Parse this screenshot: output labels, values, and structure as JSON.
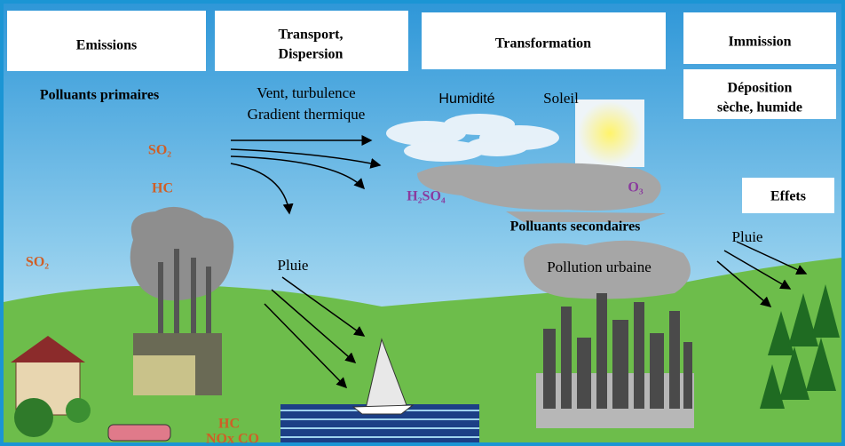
{
  "headers": {
    "emissions": "Emissions",
    "transport": [
      "Transport,",
      "Dispersion"
    ],
    "transformation": "Transformation",
    "immission": "Immission"
  },
  "deposition": [
    "Déposition",
    "sèche, humide"
  ],
  "effets": "Effets",
  "labels": {
    "primaires": "Polluants primaires",
    "vent": [
      "Vent, turbulence",
      "Gradient thermique"
    ],
    "humidite": "Humidité",
    "soleil": "Soleil",
    "so2_top": "SO₂",
    "hc_top": "HC",
    "h2so4": "H₂SO₄",
    "o3": "O₃",
    "secondaires": "Polluants secondaires",
    "pluie_right": "Pluie",
    "so2_left": "SO₂",
    "pluie_mid": "Pluie",
    "urbaine": "Pollution urbaine",
    "hc_car": "HC",
    "nox_co": "NOx  CO"
  }
}
